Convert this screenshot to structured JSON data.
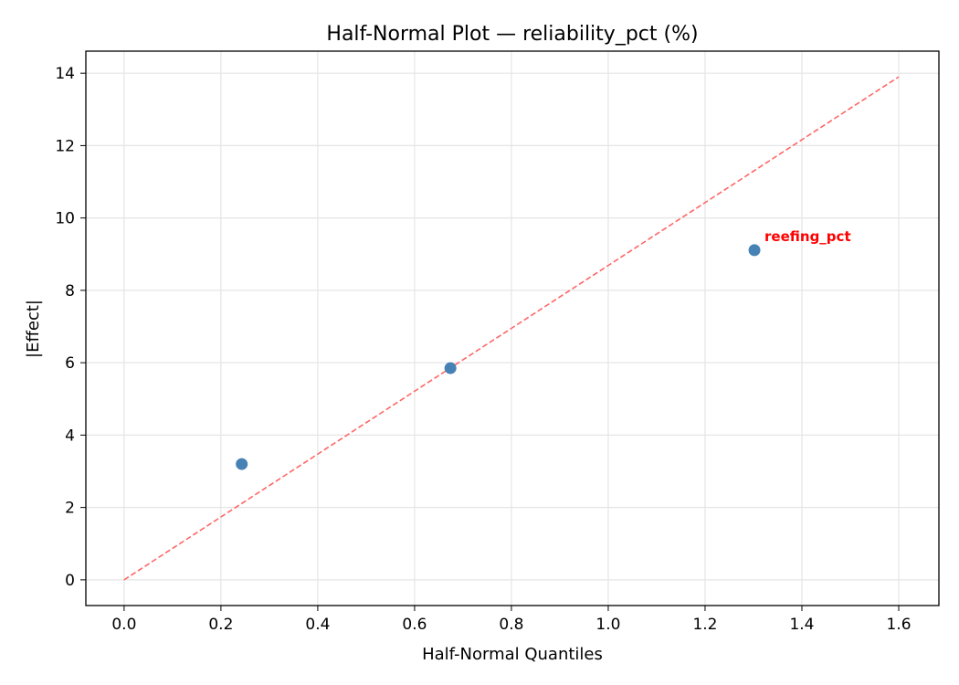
{
  "chart_data": {
    "type": "scatter",
    "title": "Half-Normal Plot — reliability_pct (%)",
    "xlabel": "Half-Normal Quantiles",
    "ylabel": "|Effect|",
    "xlim": [
      -0.079,
      1.683
    ],
    "ylim": [
      -0.71,
      14.61
    ],
    "xticks": [
      "0.0",
      "0.2",
      "0.4",
      "0.6",
      "0.8",
      "1.0",
      "1.2",
      "1.4",
      "1.6"
    ],
    "yticks": [
      "0",
      "2",
      "4",
      "6",
      "8",
      "10",
      "12",
      "14"
    ],
    "grid": true,
    "points": [
      {
        "x": 0.243,
        "y": 3.2,
        "label": ""
      },
      {
        "x": 0.674,
        "y": 5.85,
        "label": ""
      },
      {
        "x": 1.302,
        "y": 9.11,
        "label": "reefing_pct"
      }
    ],
    "reference_line": {
      "x": [
        0,
        1.6
      ],
      "y": [
        0,
        13.9
      ],
      "style": "dashed"
    },
    "colors": {
      "points": "#4682b4",
      "reference_line": "#ff6666",
      "annotation": "#ff0000",
      "grid": "#e5e5e5"
    }
  }
}
